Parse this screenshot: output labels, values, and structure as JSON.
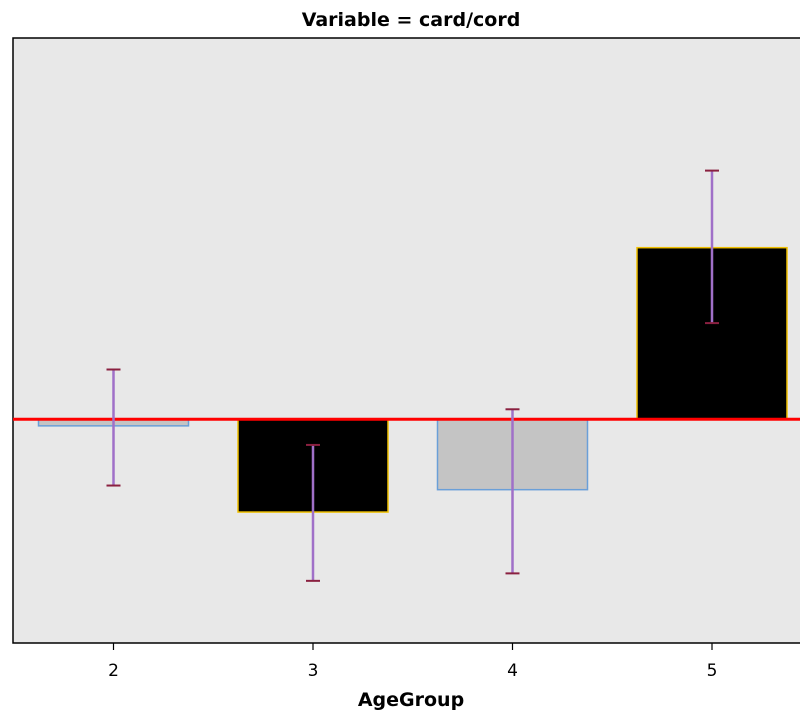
{
  "chart_data": {
    "type": "bar",
    "title": "Variable = card/cord",
    "xlabel": "AgeGroup",
    "ylabel": "",
    "categories": [
      "2",
      "3",
      "4",
      "5"
    ],
    "values": [
      -0.08,
      -1.12,
      -0.85,
      2.07
    ],
    "error_low": [
      -0.8,
      -1.95,
      -1.86,
      1.16
    ],
    "error_high": [
      0.6,
      -0.31,
      0.12,
      3.0
    ],
    "reference_line": 0,
    "ylim": [
      -2.7,
      4.6
    ],
    "grid": false,
    "colors": {
      "plot_background": "#e8e8e8",
      "reference_line": "#ff0000",
      "error_bar": "#a070c8",
      "positive_fill": "#000000",
      "positive_edge": "#f0c000",
      "negative_small_fill": "#c4c4c4",
      "negative_small_edge": "#6a9fd8"
    },
    "bar_styles": [
      {
        "fill": "#c4c4c4",
        "edge": "#6a9fd8"
      },
      {
        "fill": "#000000",
        "edge": "#f0c000"
      },
      {
        "fill": "#c4c4c4",
        "edge": "#6a9fd8"
      },
      {
        "fill": "#000000",
        "edge": "#f0c000"
      }
    ]
  }
}
